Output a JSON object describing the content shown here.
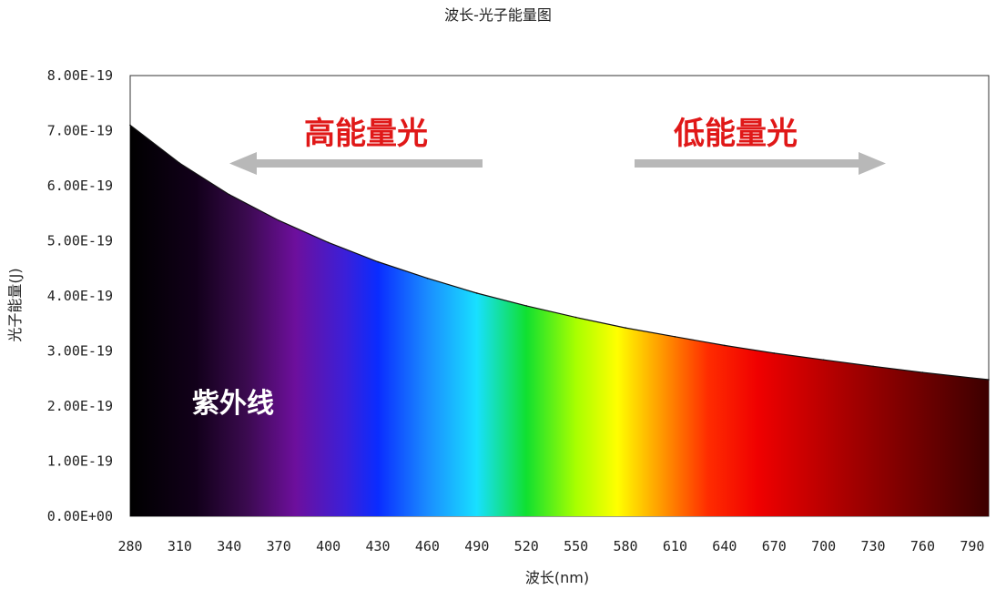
{
  "chart_data": {
    "type": "area",
    "title": "波长-光子能量图",
    "xlabel": "波长(nm)",
    "ylabel": "光子能量(J)",
    "xlim": [
      280,
      800
    ],
    "ylim": [
      0,
      8e-19
    ],
    "x_ticks": [
      "280",
      "310",
      "340",
      "370",
      "400",
      "430",
      "460",
      "490",
      "520",
      "550",
      "580",
      "610",
      "640",
      "670",
      "700",
      "730",
      "760",
      "790"
    ],
    "y_ticks": [
      "0.00E+00",
      "1.00E-19",
      "2.00E-19",
      "3.00E-19",
      "4.00E-19",
      "5.00E-19",
      "6.00E-19",
      "7.00E-19",
      "8.00E-19"
    ],
    "x": [
      280,
      310,
      340,
      370,
      400,
      430,
      460,
      490,
      520,
      550,
      580,
      610,
      640,
      670,
      700,
      730,
      760,
      790,
      800
    ],
    "y": [
      7.1e-19,
      6.41e-19,
      5.84e-19,
      5.37e-19,
      4.97e-19,
      4.62e-19,
      4.32e-19,
      4.05e-19,
      3.82e-19,
      3.61e-19,
      3.42e-19,
      3.26e-19,
      3.1e-19,
      2.96e-19,
      2.84e-19,
      2.72e-19,
      2.61e-19,
      2.51e-19,
      2.48e-19
    ],
    "grid": false,
    "annotations": {
      "high_energy": "高能量光",
      "low_energy": "低能量光",
      "uv": "紫外线"
    },
    "arrow_color": "#b8b8b8",
    "annotation_color": "#e01818",
    "spectrum_colors": [
      {
        "wl": 280,
        "color": "#000000"
      },
      {
        "wl": 320,
        "color": "#12001a"
      },
      {
        "wl": 350,
        "color": "#3a0a4e"
      },
      {
        "wl": 380,
        "color": "#6d0f9c"
      },
      {
        "wl": 410,
        "color": "#3c1fd8"
      },
      {
        "wl": 430,
        "color": "#0a2cff"
      },
      {
        "wl": 460,
        "color": "#1a8cff"
      },
      {
        "wl": 490,
        "color": "#18e0ff"
      },
      {
        "wl": 520,
        "color": "#10e030"
      },
      {
        "wl": 550,
        "color": "#a8ff00"
      },
      {
        "wl": 575,
        "color": "#ffff00"
      },
      {
        "wl": 600,
        "color": "#ffa000"
      },
      {
        "wl": 630,
        "color": "#ff2c00"
      },
      {
        "wl": 660,
        "color": "#f00000"
      },
      {
        "wl": 720,
        "color": "#a00000"
      },
      {
        "wl": 800,
        "color": "#3c0000"
      }
    ]
  }
}
